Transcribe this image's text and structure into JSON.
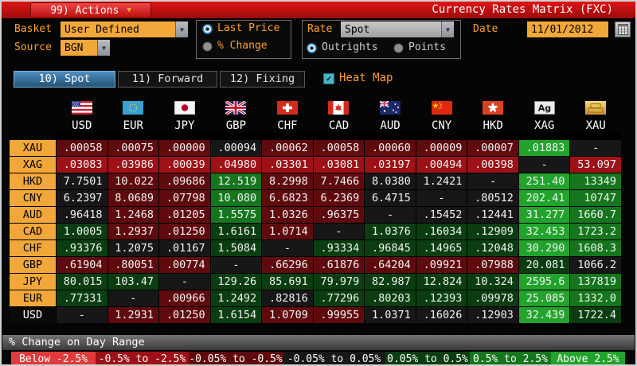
{
  "titlebar": {
    "actions_label": "99) Actions",
    "title": "Currency Rates Matrix (FXC)"
  },
  "toolbar": {
    "basket_label": "Basket",
    "basket_value": "User Defined",
    "source_label": "Source",
    "source_value": "BGN",
    "price_mode": {
      "options": [
        "Last Price",
        "% Change"
      ],
      "selected": "Last Price"
    },
    "rate_label": "Rate",
    "rate_value": "Spot",
    "rate_mode": {
      "options": [
        "Outrights",
        "Points"
      ],
      "selected": "Outrights"
    },
    "date_label": "Date",
    "date_value": "11/01/2012"
  },
  "tabs": [
    {
      "label": "10) Spot",
      "selected": true
    },
    {
      "label": "11) Forward",
      "selected": false
    },
    {
      "label": "12) Fixing",
      "selected": false
    }
  ],
  "heatmap": {
    "label": "Heat Map",
    "checked": true
  },
  "icons": {
    "actions_caret": "▼",
    "dropdown_arrow": "▼",
    "checkbox_check": "✔"
  },
  "matrix": {
    "columns": [
      {
        "code": "USD",
        "icon": "usd-flag-icon"
      },
      {
        "code": "EUR",
        "icon": "eur-flag-icon"
      },
      {
        "code": "JPY",
        "icon": "jpy-flag-icon"
      },
      {
        "code": "GBP",
        "icon": "gbp-flag-icon"
      },
      {
        "code": "CHF",
        "icon": "chf-flag-icon"
      },
      {
        "code": "CAD",
        "icon": "cad-flag-icon"
      },
      {
        "code": "AUD",
        "icon": "aud-flag-icon"
      },
      {
        "code": "CNY",
        "icon": "cny-flag-icon"
      },
      {
        "code": "HKD",
        "icon": "hkd-flag-icon"
      },
      {
        "code": "XAG",
        "icon": "xag-silver-icon"
      },
      {
        "code": "XAU",
        "icon": "xau-gold-icon"
      }
    ],
    "rows": [
      {
        "label": "XAU",
        "label_style": "amber",
        "cells": [
          {
            "v": ".00058",
            "h": "dr"
          },
          {
            "v": ".00075",
            "h": "dr"
          },
          {
            "v": ".00000",
            "h": "dr"
          },
          {
            "v": ".00094",
            "h": "k"
          },
          {
            "v": ".00062",
            "h": "dr"
          },
          {
            "v": ".00058",
            "h": "dr"
          },
          {
            "v": ".00060",
            "h": "dr"
          },
          {
            "v": ".00009",
            "h": "dr"
          },
          {
            "v": ".00007",
            "h": "dr"
          },
          {
            "v": ".01883",
            "h": "bg"
          },
          {
            "v": "-",
            "h": "k"
          }
        ]
      },
      {
        "label": "XAG",
        "label_style": "amber",
        "cells": [
          {
            "v": ".03083",
            "h": "mr"
          },
          {
            "v": ".03986",
            "h": "mr"
          },
          {
            "v": ".00039",
            "h": "mr"
          },
          {
            "v": ".04980",
            "h": "mr"
          },
          {
            "v": ".03301",
            "h": "mr"
          },
          {
            "v": ".03081",
            "h": "mr"
          },
          {
            "v": ".03197",
            "h": "mr"
          },
          {
            "v": ".00494",
            "h": "mr"
          },
          {
            "v": ".00398",
            "h": "mr"
          },
          {
            "v": "-",
            "h": "k"
          },
          {
            "v": "53.097",
            "h": "mr"
          }
        ]
      },
      {
        "label": "HKD",
        "label_style": "amber",
        "cells": [
          {
            "v": "7.7501",
            "h": "k"
          },
          {
            "v": "10.022",
            "h": "dr"
          },
          {
            "v": ".09686",
            "h": "dr"
          },
          {
            "v": "12.519",
            "h": "mg"
          },
          {
            "v": "8.2998",
            "h": "dr"
          },
          {
            "v": "7.7466",
            "h": "dr"
          },
          {
            "v": "8.0380",
            "h": "k"
          },
          {
            "v": "1.2421",
            "h": "k"
          },
          {
            "v": "-",
            "h": "k"
          },
          {
            "v": "251.40",
            "h": "bg"
          },
          {
            "v": "13349",
            "h": "mg"
          }
        ]
      },
      {
        "label": "CNY",
        "label_style": "amber",
        "cells": [
          {
            "v": "6.2397",
            "h": "k"
          },
          {
            "v": "8.0689",
            "h": "dr"
          },
          {
            "v": ".07798",
            "h": "dr"
          },
          {
            "v": "10.080",
            "h": "mg"
          },
          {
            "v": "6.6823",
            "h": "dr"
          },
          {
            "v": "6.2369",
            "h": "dr"
          },
          {
            "v": "6.4715",
            "h": "k"
          },
          {
            "v": "-",
            "h": "k"
          },
          {
            "v": ".80512",
            "h": "k"
          },
          {
            "v": "202.41",
            "h": "bg"
          },
          {
            "v": "10747",
            "h": "mg"
          }
        ]
      },
      {
        "label": "AUD",
        "label_style": "amber",
        "cells": [
          {
            "v": ".96418",
            "h": "k"
          },
          {
            "v": "1.2468",
            "h": "dr"
          },
          {
            "v": ".01205",
            "h": "dr"
          },
          {
            "v": "1.5575",
            "h": "mg"
          },
          {
            "v": "1.0326",
            "h": "dr"
          },
          {
            "v": ".96375",
            "h": "dr"
          },
          {
            "v": "-",
            "h": "k"
          },
          {
            "v": ".15452",
            "h": "k"
          },
          {
            "v": ".12441",
            "h": "k"
          },
          {
            "v": "31.277",
            "h": "bg"
          },
          {
            "v": "1660.7",
            "h": "mg"
          }
        ]
      },
      {
        "label": "CAD",
        "label_style": "amber",
        "cells": [
          {
            "v": "1.0005",
            "h": "dg"
          },
          {
            "v": "1.2937",
            "h": "dr"
          },
          {
            "v": ".01250",
            "h": "dr"
          },
          {
            "v": "1.6161",
            "h": "dg"
          },
          {
            "v": "1.0714",
            "h": "dr"
          },
          {
            "v": "-",
            "h": "k"
          },
          {
            "v": "1.0376",
            "h": "dg"
          },
          {
            "v": ".16034",
            "h": "dg"
          },
          {
            "v": ".12909",
            "h": "dg"
          },
          {
            "v": "32.453",
            "h": "bg"
          },
          {
            "v": "1723.2",
            "h": "mg"
          }
        ]
      },
      {
        "label": "CHF",
        "label_style": "amber",
        "cells": [
          {
            "v": ".93376",
            "h": "dg"
          },
          {
            "v": "1.2075",
            "h": "k"
          },
          {
            "v": ".01167",
            "h": "k"
          },
          {
            "v": "1.5084",
            "h": "dg"
          },
          {
            "v": "-",
            "h": "k"
          },
          {
            "v": ".93334",
            "h": "dg"
          },
          {
            "v": ".96845",
            "h": "dg"
          },
          {
            "v": ".14965",
            "h": "dg"
          },
          {
            "v": ".12048",
            "h": "dg"
          },
          {
            "v": "30.290",
            "h": "bg"
          },
          {
            "v": "1608.3",
            "h": "mg"
          }
        ]
      },
      {
        "label": "GBP",
        "label_style": "amber",
        "cells": [
          {
            "v": ".61904",
            "h": "dr"
          },
          {
            "v": ".80051",
            "h": "dr"
          },
          {
            "v": ".00774",
            "h": "dr"
          },
          {
            "v": "-",
            "h": "k"
          },
          {
            "v": ".66296",
            "h": "dr"
          },
          {
            "v": ".61876",
            "h": "dr"
          },
          {
            "v": ".64204",
            "h": "dr"
          },
          {
            "v": ".09921",
            "h": "dr"
          },
          {
            "v": ".07988",
            "h": "dr"
          },
          {
            "v": "20.081",
            "h": "dg"
          },
          {
            "v": "1066.2",
            "h": "k"
          }
        ]
      },
      {
        "label": "JPY",
        "label_style": "amber",
        "cells": [
          {
            "v": "80.015",
            "h": "dg"
          },
          {
            "v": "103.47",
            "h": "dg"
          },
          {
            "v": "-",
            "h": "k"
          },
          {
            "v": "129.26",
            "h": "dg"
          },
          {
            "v": "85.691",
            "h": "dg"
          },
          {
            "v": "79.979",
            "h": "dg"
          },
          {
            "v": "82.987",
            "h": "dg"
          },
          {
            "v": "12.824",
            "h": "dg"
          },
          {
            "v": "10.324",
            "h": "dg"
          },
          {
            "v": "2595.6",
            "h": "bg"
          },
          {
            "v": "137819",
            "h": "mg"
          }
        ]
      },
      {
        "label": "EUR",
        "label_style": "amber",
        "cells": [
          {
            "v": ".77331",
            "h": "dg"
          },
          {
            "v": "-",
            "h": "k"
          },
          {
            "v": ".00966",
            "h": "dr"
          },
          {
            "v": "1.2492",
            "h": "dg"
          },
          {
            "v": ".82816",
            "h": "k"
          },
          {
            "v": ".77296",
            "h": "dg"
          },
          {
            "v": ".80203",
            "h": "dg"
          },
          {
            "v": ".12393",
            "h": "dg"
          },
          {
            "v": ".09978",
            "h": "dg"
          },
          {
            "v": "25.085",
            "h": "bg"
          },
          {
            "v": "1332.0",
            "h": "mg"
          }
        ]
      },
      {
        "label": "USD",
        "label_style": "plain",
        "cells": [
          {
            "v": "-",
            "h": "k"
          },
          {
            "v": "1.2931",
            "h": "dr"
          },
          {
            "v": ".01250",
            "h": "dr"
          },
          {
            "v": "1.6154",
            "h": "dg"
          },
          {
            "v": "1.0709",
            "h": "dr"
          },
          {
            "v": ".99955",
            "h": "dr"
          },
          {
            "v": "1.0371",
            "h": "k"
          },
          {
            "v": ".16026",
            "h": "k"
          },
          {
            "v": ".12903",
            "h": "k"
          },
          {
            "v": "32.439",
            "h": "bg"
          },
          {
            "v": "1722.4",
            "h": "dg"
          }
        ]
      }
    ]
  },
  "legend": {
    "title": "% Change on Day Range",
    "ranges": [
      {
        "label": "Below -2.5%",
        "h": "lr"
      },
      {
        "label": "-0.5% to -2.5%",
        "h": "mr"
      },
      {
        "label": "-0.05% to -0.5%",
        "h": "dr"
      },
      {
        "label": "-0.05% to 0.05%",
        "h": "k"
      },
      {
        "label": "0.05% to 0.5%",
        "h": "dg"
      },
      {
        "label": "0.5% to 2.5%",
        "h": "mg"
      },
      {
        "label": "Above 2.5%",
        "h": "bg"
      }
    ]
  },
  "colors": {
    "heat": {
      "lr": "#e03a3a",
      "mr": "#9e1116",
      "dr": "#5f0b0e",
      "k": "#171717",
      "dg": "#0a3e10",
      "mg": "#15761d",
      "bg": "#22a42c"
    },
    "accent": {
      "amber_field": "#f2a73b",
      "amber_text": "#ffa028",
      "tab_blue": "#3576a8",
      "titlebar_red": "#c41010",
      "checkbox_teal": "#4cb6c6"
    }
  }
}
